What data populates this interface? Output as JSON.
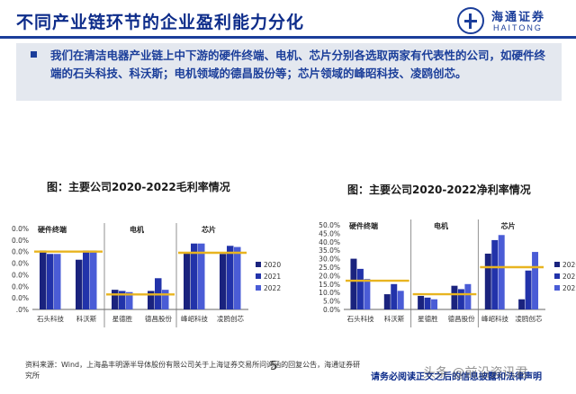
{
  "header": {
    "title": "不同产业链环节的企业盈利能力分化",
    "logo_cn": "海通证券",
    "logo_en": "HAITONG",
    "accent_color": "#1b3e9a"
  },
  "summary": {
    "text": "我们在清洁电器产业链上中下游的硬件终端、电机、芯片分别各选取两家有代表性的公司，如硬件终端的石头科技、科沃斯；电机领域的德昌股份等；芯片领域的峰昭科技、凌鸥创芯。"
  },
  "charts": {
    "left_caption": "图：主要公司2020-2022毛利率情况",
    "right_caption": "图：主要公司2020-2022净利率情况"
  },
  "chart_data": [
    {
      "type": "bar",
      "companies": [
        "石头科技",
        "科沃斯",
        "星德胜",
        "德昌股份",
        "峰岹科技",
        "凌鸥创芯"
      ],
      "groups": [
        {
          "label": "硬件终端",
          "members": 2
        },
        {
          "label": "电机",
          "members": 2
        },
        {
          "label": "芯片",
          "members": 2
        }
      ],
      "ytick_labels": [
        ".0%",
        "0.0%",
        "0.0%",
        "0.0%",
        "0.0%",
        "0.0%",
        "0.0%",
        "0.0%"
      ],
      "ylim": [
        0,
        70
      ],
      "series": [
        {
          "name": "2020",
          "color": "#1a237e",
          "values": [
            51,
            43,
            17,
            16,
            49,
            48
          ]
        },
        {
          "name": "2021",
          "color": "#2233aa",
          "values": [
            48,
            51,
            16,
            27,
            57,
            55
          ]
        },
        {
          "name": "2022",
          "color": "#4a5cd6",
          "values": [
            48,
            51,
            15,
            17,
            57,
            54
          ]
        }
      ],
      "reference_lines": [
        {
          "group": 0,
          "value": 50
        },
        {
          "group": 1,
          "value": 13
        },
        {
          "group": 2,
          "value": 49
        }
      ],
      "reference_color": "#e8b420"
    },
    {
      "type": "bar",
      "companies": [
        "石头科技",
        "科沃斯",
        "星德胜",
        "德昌股份",
        "峰岹科技",
        "凌鸥创芯"
      ],
      "groups": [
        {
          "label": "硬件终端",
          "members": 2
        },
        {
          "label": "电机",
          "members": 2
        },
        {
          "label": "芯片",
          "members": 2
        }
      ],
      "ytick_labels": [
        "0.0%",
        "5.0%",
        "10.0%",
        "15.0%",
        "20.0%",
        "25.0%",
        "30.0%",
        "35.0%",
        "40.0%",
        "45.0%",
        "50.0%"
      ],
      "ylim": [
        0,
        50
      ],
      "series": [
        {
          "name": "2020",
          "color": "#1a237e",
          "values": [
            30,
            9,
            8,
            14,
            33,
            6
          ]
        },
        {
          "name": "2021",
          "color": "#2233aa",
          "values": [
            24,
            15,
            7,
            12,
            41,
            23
          ]
        },
        {
          "name": "2022",
          "color": "#4a5cd6",
          "values": [
            18,
            11,
            6,
            15,
            44,
            34
          ]
        }
      ],
      "reference_lines": [
        {
          "group": 0,
          "value": 17
        },
        {
          "group": 1,
          "value": 9
        },
        {
          "group": 2,
          "value": 25
        }
      ],
      "reference_color": "#e8b420"
    }
  ],
  "footer": {
    "source": "资料来源：Wind，上海晶丰明源半导体股份有限公司关于上海证券交易所问询函的回复公告，海通证券研究所",
    "page_number": "5",
    "disclaimer": "请务必阅读正文之后的信息披露和法律声明",
    "watermark": "头条 @前沿资讯君"
  }
}
